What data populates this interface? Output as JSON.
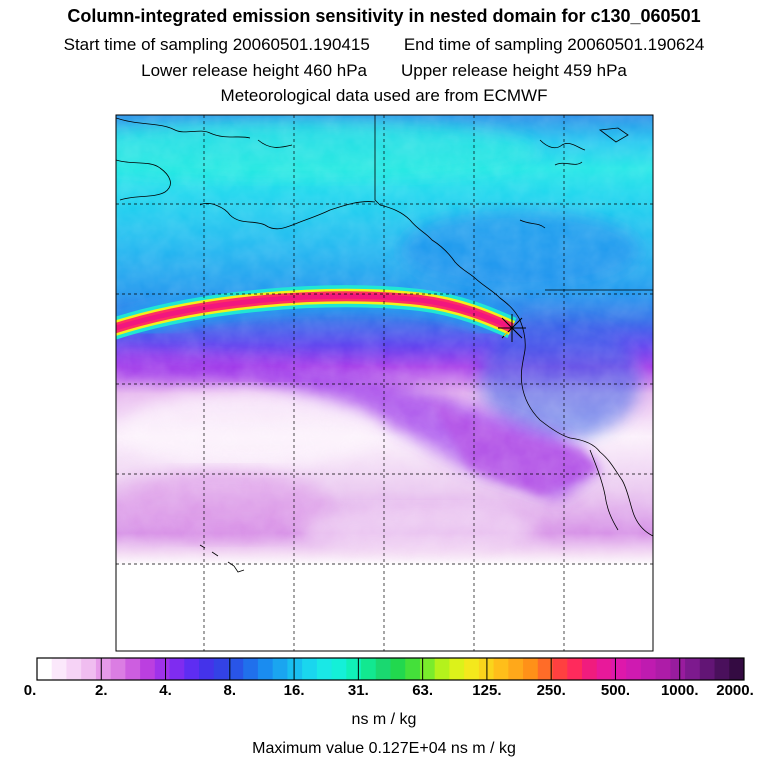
{
  "header": {
    "title": "Column-integrated emission sensitivity in nested domain for c130_060501",
    "start_label": "Start time of sampling 20060501.190415",
    "end_label": "End time of sampling 20060501.190624",
    "lower_label": "Lower release height  460 hPa",
    "upper_label": "Upper release height  459 hPa",
    "met_label": "Meteorological data used are from ECMWF"
  },
  "colorbar": {
    "tick_labels": [
      "0.",
      "2.",
      "4.",
      "8.",
      "16.",
      "31.",
      "63.",
      "125.",
      "250.",
      "500.",
      "1000.",
      "2000."
    ],
    "colors": [
      "#ffffff",
      "#fbe8fb",
      "#f6d3f6",
      "#f0bdf0",
      "#e69ae9",
      "#db7de3",
      "#cd5ee0",
      "#bb3fe0",
      "#9f32ea",
      "#7f2cf0",
      "#5e2df2",
      "#4433ea",
      "#3342e6",
      "#2955e8",
      "#2070ec",
      "#1a8cf0",
      "#1aa5f0",
      "#19bff0",
      "#1ad6ee",
      "#1ae8e6",
      "#14f0d8",
      "#10f0b8",
      "#12e890",
      "#1ad870",
      "#22d84e",
      "#44e03a",
      "#7aec2c",
      "#b4f21c",
      "#dcf21a",
      "#f4e81c",
      "#fad41c",
      "#ffbe1a",
      "#ffa81a",
      "#ff9118",
      "#ff6c28",
      "#ff4040",
      "#ff2a5c",
      "#f01c7e",
      "#e8199a",
      "#de18ab",
      "#cf1ab1",
      "#bf1bb0",
      "#ae1ca8",
      "#981c9e",
      "#7d1a8e",
      "#621575",
      "#4a105c",
      "#340b42"
    ],
    "unit": "ns m / kg"
  },
  "max_value_label": "Maximum value  0.127E+04 ns m / kg"
}
